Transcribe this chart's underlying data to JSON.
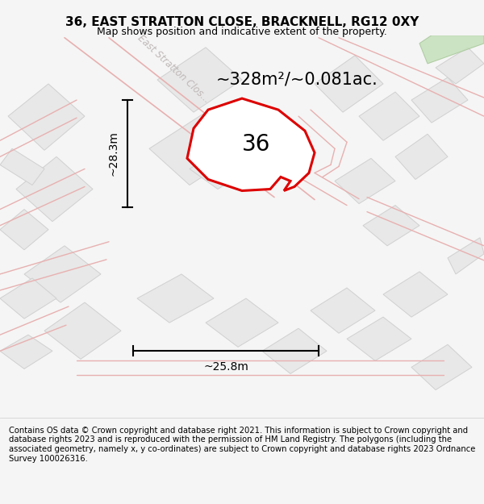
{
  "title": "36, EAST STRATTON CLOSE, BRACKNELL, RG12 0XY",
  "subtitle": "Map shows position and indicative extent of the property.",
  "area_text": "~328m²/~0.081ac.",
  "number_label": "36",
  "dim_vertical": "~28.3m",
  "dim_horizontal": "~25.8m",
  "footer_text": "Contains OS data © Crown copyright and database right 2021. This information is subject to Crown copyright and database rights 2023 and is reproduced with the permission of HM Land Registry. The polygons (including the associated geometry, namely x, y co-ordinates) are subject to Crown copyright and database rights 2023 Ordnance Survey 100026316.",
  "bg_color": "#f5f5f5",
  "map_bg": "#f0f0f0",
  "plot_color": "#dd0000",
  "green_color": "#c5e0bb",
  "title_fontsize": 11,
  "subtitle_fontsize": 9,
  "area_fontsize": 15,
  "number_fontsize": 20,
  "dim_fontsize": 10,
  "footer_fontsize": 7.2,
  "road_label_color": "#c0b8b8",
  "road_line_color": "#e8b0b0",
  "parcel_fc": "#e8e8e8",
  "parcel_ec": "#d0d0d0"
}
